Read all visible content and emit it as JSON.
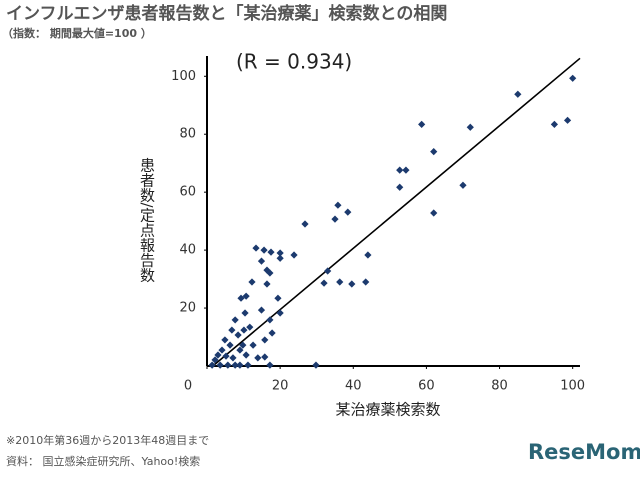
{
  "chart_data": {
    "type": "scatter",
    "title": "インフルエンザ患者報告数と「某治療薬」検索数との相関",
    "subtitle": "（指数： 期間最大値=100 ）",
    "annotation": "(R = 0.934)",
    "x_label": "某治療薬検索数",
    "y_label": "患者数/定点報告数",
    "footnote": "※2010年第36週から2013年48週目まで",
    "source": "資料： 国立感染症研究所、Yahoo!検索",
    "logo": "ReseMom",
    "color": "#1c3a6e",
    "xlim": [
      0,
      102
    ],
    "ylim": [
      0,
      107
    ],
    "xticks": [
      0,
      20,
      40,
      60,
      80,
      100
    ],
    "yticks": [
      20,
      40,
      60,
      80,
      100
    ],
    "trendline": {
      "x": [
        1.6,
        102
      ],
      "y": [
        0,
        106.2
      ]
    },
    "x": [
      100,
      98.6,
      95,
      85,
      72,
      70,
      62,
      62,
      58.7,
      54.4,
      52.7,
      52.7,
      43.4,
      44,
      38.5,
      35.8,
      35,
      39.6,
      36.3,
      33,
      32,
      26.8,
      29.8,
      23.8,
      20,
      20,
      17.5,
      15.6,
      13.4,
      14.9,
      16.4,
      17.2,
      16.4,
      12.3,
      10.7,
      9.3,
      10.4,
      19.4,
      20,
      17.2,
      14.9,
      17.8,
      15.8,
      11.7,
      7.7,
      6.8,
      8.5,
      10.1,
      9.8,
      6.3,
      4.1,
      5.2,
      2.2,
      1.4,
      3.6,
      5.7,
      7.7,
      9,
      11.2,
      13.9,
      15.8,
      17.2,
      10.7,
      9,
      12.6,
      7.1,
      3,
      4.9
    ],
    "y": [
      99.3,
      84.8,
      83.4,
      93.8,
      82.4,
      62.4,
      74,
      52.8,
      83.4,
      67.6,
      67.6,
      61.7,
      29,
      38.3,
      53.1,
      55.5,
      50.7,
      28.3,
      29,
      32.8,
      28.6,
      49,
      0.3,
      38.3,
      39,
      37.2,
      39.3,
      40,
      40.7,
      36.2,
      33.1,
      32.1,
      28.3,
      29,
      24.1,
      23.4,
      18.3,
      23.4,
      18.3,
      15.9,
      19.3,
      11.4,
      9,
      13.4,
      15.9,
      12.4,
      10.7,
      12.4,
      7.2,
      7.2,
      5.5,
      3.4,
      2.1,
      0.3,
      0.3,
      0.3,
      0.3,
      0.3,
      0.3,
      2.8,
      3.1,
      0.3,
      3.8,
      5.5,
      7.2,
      2.8,
      3.8,
      9
    ]
  }
}
